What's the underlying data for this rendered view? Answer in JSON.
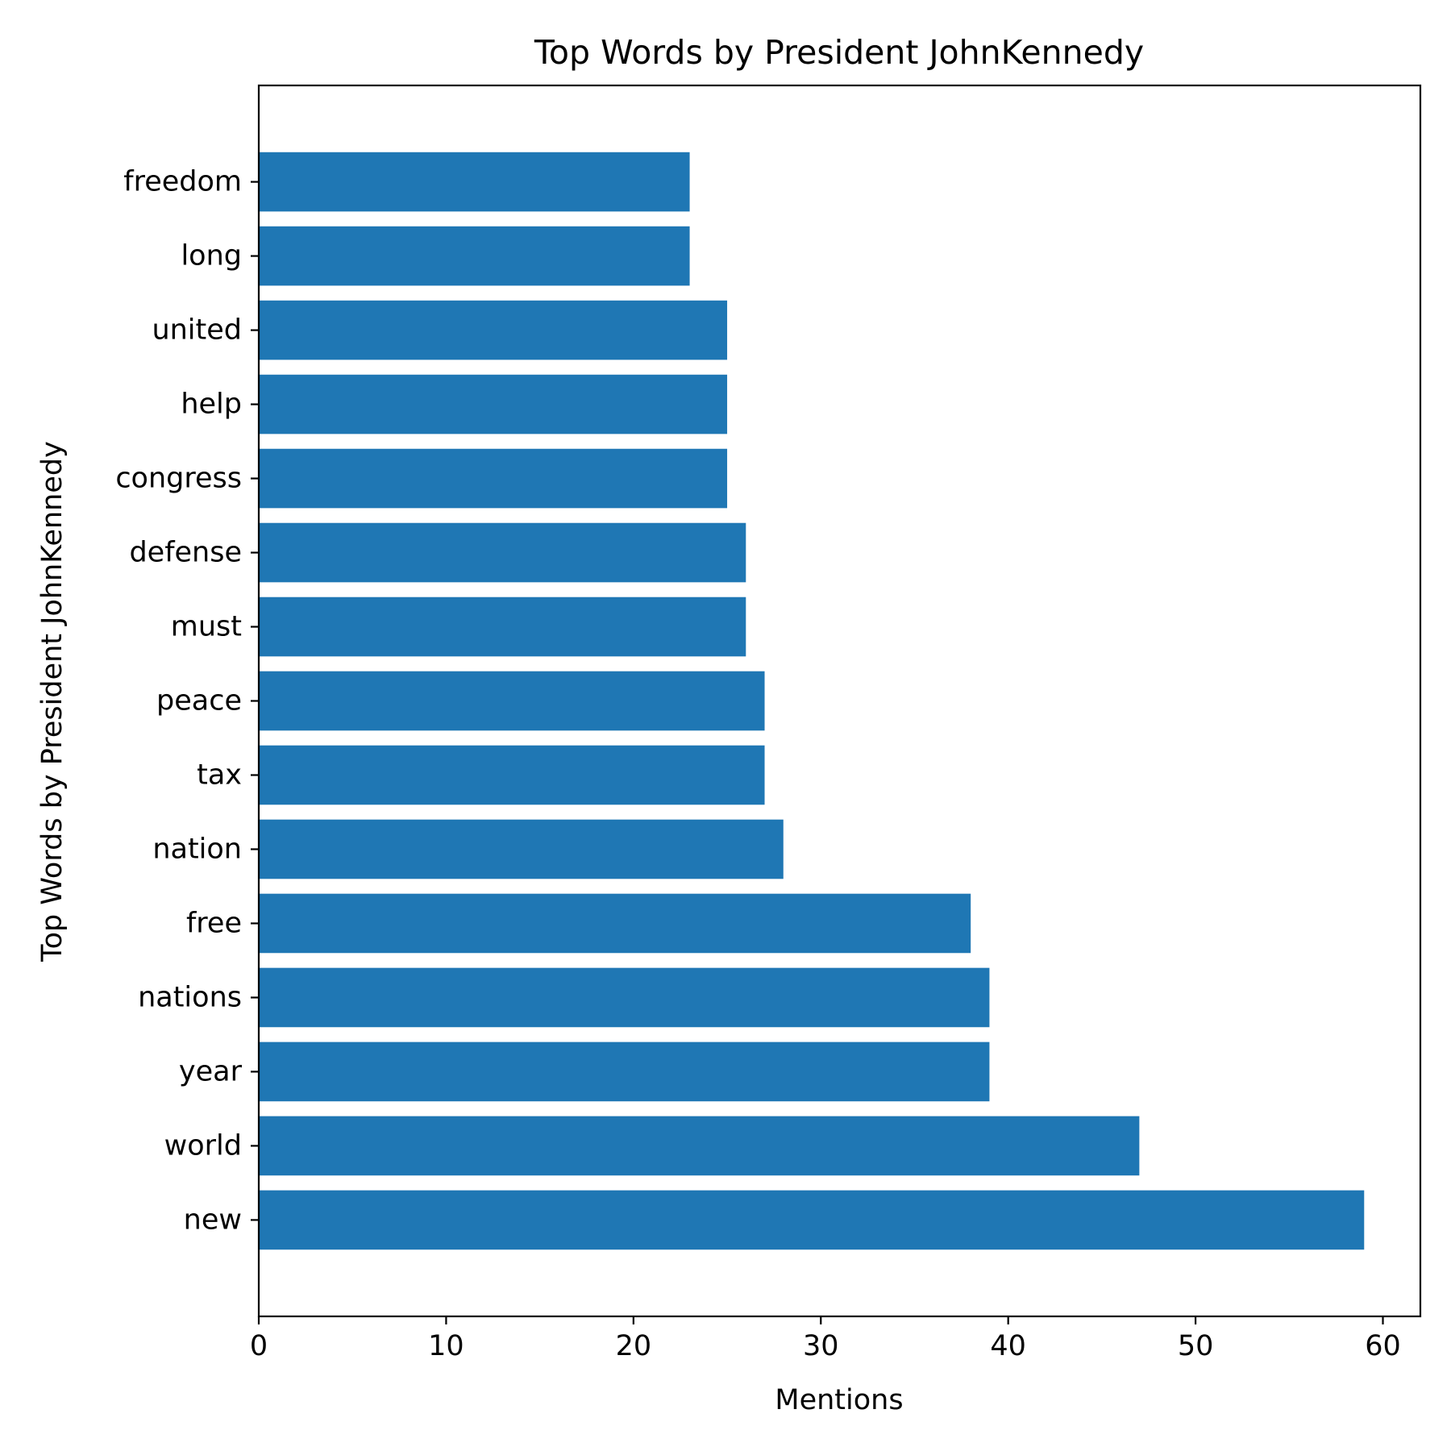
{
  "chart_data": {
    "type": "bar",
    "orientation": "horizontal",
    "title": "Top Words by President JohnKennedy",
    "xlabel": "Mentions",
    "ylabel": "Top Words by President JohnKennedy",
    "categories": [
      "new",
      "world",
      "year",
      "nations",
      "free",
      "nation",
      "tax",
      "peace",
      "must",
      "defense",
      "congress",
      "help",
      "united",
      "long",
      "freedom"
    ],
    "values": [
      59,
      47,
      39,
      39,
      38,
      28,
      27,
      27,
      26,
      26,
      25,
      25,
      25,
      23,
      23
    ],
    "xlim": [
      0,
      62
    ],
    "xticks": [
      0,
      10,
      20,
      30,
      40,
      50,
      60
    ],
    "bar_color": "#1f77b4",
    "grid": false,
    "legend": "none"
  }
}
